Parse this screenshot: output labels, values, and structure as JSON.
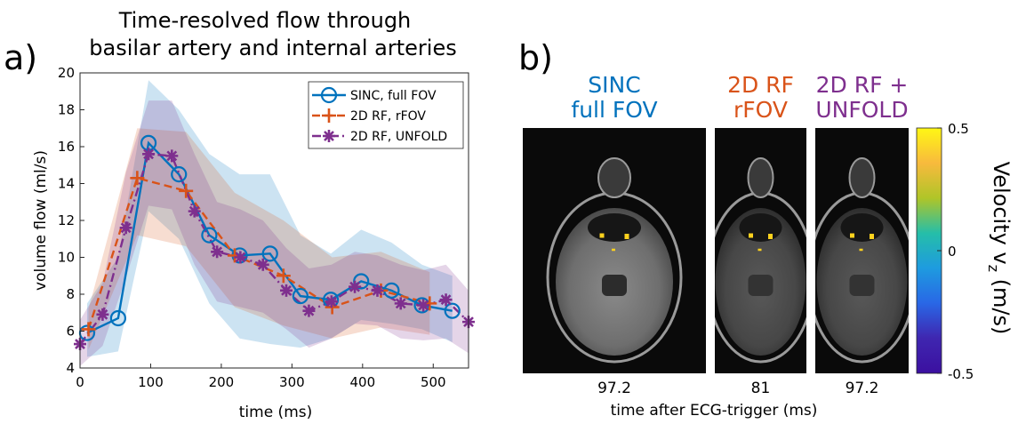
{
  "panel_a": {
    "label": "a)",
    "title_line1": "Time-resolved flow through",
    "title_line2": "basilar artery and internal arteries"
  },
  "panel_b": {
    "label": "b)",
    "columns": [
      {
        "title_line1": "SINC",
        "title_line2": "full FOV",
        "color": "#0072BD",
        "time_label": "97.2"
      },
      {
        "title_line1": "2D RF",
        "title_line2": "rFOV",
        "color": "#D95319",
        "time_label": "81"
      },
      {
        "title_line1": "2D RF +",
        "title_line2": "UNFOLD",
        "color": "#7E2F8E",
        "time_label": "97.2"
      }
    ],
    "xlabel": "time after ECG-trigger (ms)",
    "colorbar": {
      "ticks": [
        "0.5",
        "0",
        "-0.5"
      ],
      "label": "Velocity v",
      "label_sub": "z",
      "label_unit": " (m/s)",
      "colors": [
        "#FFF714",
        "#F8BA3D",
        "#AFC528",
        "#25BEA9",
        "#1E9BDF",
        "#2967E6",
        "#3F26B0",
        "#3B10A0"
      ]
    }
  },
  "chart_data": {
    "type": "line",
    "xlabel": "time (ms)",
    "ylabel": "volume flow (ml/s)",
    "xlim": [
      0,
      550
    ],
    "ylim": [
      4,
      20
    ],
    "xticks": [
      0,
      100,
      200,
      300,
      400,
      500
    ],
    "yticks": [
      4,
      6,
      8,
      10,
      12,
      14,
      16,
      18,
      20
    ],
    "legend_position": "top-right",
    "series": [
      {
        "name": "SINC, full FOV",
        "color": "#0072BD",
        "marker": "circle",
        "linestyle": "solid",
        "x": [
          10,
          54,
          97,
          140,
          183,
          226,
          269,
          312,
          355,
          398,
          441,
          484,
          527
        ],
        "y": [
          5.9,
          6.7,
          16.2,
          14.5,
          11.2,
          10.1,
          10.2,
          7.9,
          7.7,
          8.7,
          8.2,
          7.4,
          7.1
        ],
        "band_upper": [
          7.5,
          10.0,
          19.6,
          18.0,
          15.6,
          14.5,
          14.5,
          11.2,
          10.2,
          11.5,
          10.8,
          9.6,
          9.0
        ],
        "band_lower": [
          4.6,
          4.9,
          12.5,
          11.0,
          7.5,
          5.6,
          5.3,
          5.1,
          5.6,
          6.6,
          6.4,
          6.1,
          5.4
        ]
      },
      {
        "name": "2D RF, rFOV",
        "color": "#D95319",
        "marker": "plus",
        "linestyle": "dashed",
        "x": [
          12,
          81,
          150,
          219,
          288,
          357,
          426,
          495
        ],
        "y": [
          6.1,
          14.3,
          13.6,
          10.1,
          9.0,
          7.3,
          8.2,
          7.5
        ],
        "band_upper": [
          7.2,
          17.0,
          16.8,
          13.5,
          12.0,
          10.0,
          10.3,
          9.2
        ],
        "band_lower": [
          5.0,
          11.2,
          10.6,
          7.3,
          6.3,
          5.6,
          6.2,
          5.8
        ]
      },
      {
        "name": "2D RF, UNFOLD",
        "color": "#7E2F8E",
        "marker": "asterisk",
        "linestyle": "dashdot",
        "x": [
          0,
          32,
          65,
          97,
          130,
          162,
          194,
          227,
          259,
          292,
          324,
          356,
          389,
          421,
          454,
          486,
          518,
          550
        ],
        "y": [
          5.3,
          6.9,
          11.6,
          15.6,
          15.5,
          12.5,
          10.3,
          10.0,
          9.6,
          8.2,
          7.1,
          7.6,
          8.4,
          8.2,
          7.5,
          7.4,
          7.7,
          6.5
        ],
        "band_upper": [
          6.6,
          8.6,
          14.6,
          18.5,
          18.5,
          15.6,
          13.0,
          12.6,
          12.0,
          10.5,
          9.4,
          9.6,
          10.3,
          10.1,
          9.6,
          9.3,
          9.6,
          8.2
        ],
        "band_lower": [
          4.1,
          5.2,
          8.9,
          12.8,
          12.6,
          9.6,
          7.6,
          7.3,
          7.0,
          6.1,
          5.1,
          5.6,
          6.4,
          6.3,
          5.6,
          5.5,
          5.6,
          4.8
        ]
      }
    ]
  }
}
